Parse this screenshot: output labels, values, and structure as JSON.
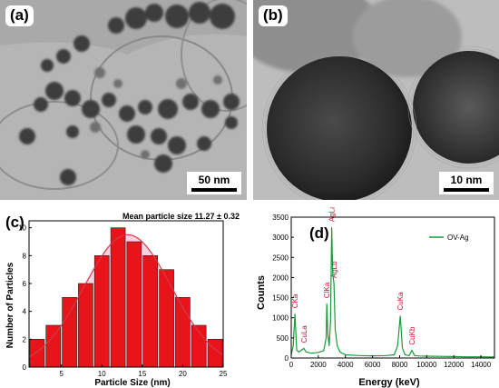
{
  "panels": {
    "a": {
      "label": "(a)",
      "scale_bar": "50 nm"
    },
    "b": {
      "label": "(b)",
      "scale_bar": "10 nm"
    },
    "c": {
      "label": "(c)",
      "annotation": "Mean particle size 11.27 ± 0.32"
    },
    "d": {
      "label": "(d)"
    }
  },
  "chart_data": [
    {
      "type": "bar",
      "panel": "c",
      "xlabel": "Particle Size (nm)",
      "ylabel": "Number of Particles",
      "x": [
        2,
        4,
        6,
        8,
        10,
        12,
        14,
        16,
        18,
        20,
        22,
        24
      ],
      "values": [
        2,
        3,
        5,
        6,
        8,
        10,
        9,
        8,
        7,
        5,
        3,
        2
      ],
      "xlim": [
        1,
        25
      ],
      "ylim": [
        0,
        10.5
      ],
      "xticks": [
        5,
        10,
        15,
        20,
        25
      ],
      "yticks": [
        0,
        2,
        4,
        6,
        8,
        10
      ],
      "fit": "gaussian",
      "colors": {
        "bar": "#e8141a",
        "fill": "#f4c8d8",
        "fit_line": "#d03a4a"
      }
    },
    {
      "type": "line",
      "panel": "d",
      "xlabel": "Energy (keV)",
      "ylabel": "Counts",
      "xlim": [
        0,
        15000
      ],
      "ylim": [
        0,
        3500
      ],
      "xticks": [
        0,
        2000,
        4000,
        6000,
        8000,
        10000,
        12000,
        14000
      ],
      "yticks": [
        0,
        500,
        1000,
        1500,
        2000,
        2500,
        3000,
        3500
      ],
      "legend": "top-right",
      "series": [
        {
          "name": "OV-Ag",
          "color": "#1a9a3a",
          "x": [
            0,
            150,
            277,
            400,
            550,
            700,
            930,
            1100,
            1500,
            2000,
            2400,
            2580,
            2622,
            2700,
            2800,
            2900,
            2984,
            3060,
            3151,
            3250,
            3400,
            3600,
            4000,
            5000,
            6000,
            7000,
            7600,
            7850,
            8048,
            8200,
            8400,
            8700,
            8905,
            9100,
            9500,
            10000,
            11000,
            12000,
            13000,
            14000,
            15000
          ],
          "y": [
            80,
            300,
            1100,
            200,
            150,
            180,
            240,
            150,
            120,
            140,
            180,
            500,
            1350,
            600,
            300,
            900,
            3250,
            2100,
            1850,
            700,
            300,
            150,
            80,
            60,
            55,
            60,
            80,
            300,
            1050,
            250,
            80,
            60,
            190,
            60,
            50,
            45,
            40,
            35,
            30,
            30,
            25
          ]
        }
      ],
      "peak_labels": [
        {
          "label": "CKa",
          "energy": 277
        },
        {
          "label": "CuLa",
          "energy": 930
        },
        {
          "label": "ClKa",
          "energy": 2622
        },
        {
          "label": "AgLa",
          "energy": 2984
        },
        {
          "label": "AgLb",
          "energy": 3151
        },
        {
          "label": "CuKa",
          "energy": 8048
        },
        {
          "label": "CuKb",
          "energy": 8905
        }
      ]
    }
  ]
}
